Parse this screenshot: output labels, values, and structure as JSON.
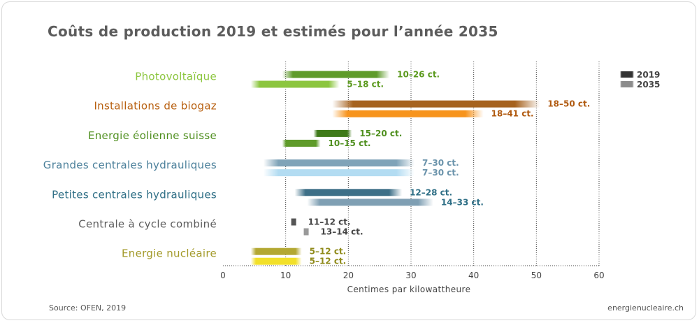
{
  "chart_data": {
    "type": "bar",
    "title": "Coûts de production 2019 et estimés pour l’année 2035",
    "xlabel": "Centimes par kilowattheure",
    "xlim": [
      0,
      60
    ],
    "xticks": [
      0,
      10,
      20,
      30,
      40,
      50,
      60
    ],
    "grid": true,
    "legend_position": "top-right",
    "legend": [
      {
        "name": "2019",
        "color": "#333333"
      },
      {
        "name": "2035",
        "color": "#8c8c8c"
      }
    ],
    "categories": [
      {
        "label": "Photovoltaïque",
        "color": "#8cc63f",
        "ranges": [
          {
            "series": "2019",
            "min": 10,
            "max": 26,
            "label": "10–26 ct.",
            "color": "#5f9b2a",
            "label_color": "#5c9a1f"
          },
          {
            "series": "2035",
            "min": 5,
            "max": 18,
            "label": "5–18 ct.",
            "color": "#8cc63f",
            "label_color": "#5c9a1f"
          }
        ]
      },
      {
        "label": "Installations de biogaz",
        "color": "#b86010",
        "ranges": [
          {
            "series": "2019",
            "min": 18,
            "max": 50,
            "label": "18–50 ct.",
            "color": "#a6621e",
            "label_color": "#b05a10"
          },
          {
            "series": "2035",
            "min": 18,
            "max": 41,
            "label": "18–41 ct.",
            "color": "#f7941d",
            "label_color": "#b05a10"
          }
        ]
      },
      {
        "label": "Energie éolienne suisse",
        "color": "#4f8f1f",
        "ranges": [
          {
            "series": "2019",
            "min": 15,
            "max": 20,
            "label": "15–20 ct.",
            "color": "#3f7a1a",
            "label_color": "#4f8f1f"
          },
          {
            "series": "2035",
            "min": 10,
            "max": 15,
            "label": "10–15 ct.",
            "color": "#5f9b2a",
            "label_color": "#4f8f1f"
          }
        ]
      },
      {
        "label": "Grandes centrales hydrauliques",
        "color": "#4a7f9a",
        "ranges": [
          {
            "series": "2019",
            "min": 7,
            "max": 30,
            "label": "7–30 ct.",
            "color": "#7fa3b8",
            "label_color": "#6a93ab"
          },
          {
            "series": "2035",
            "min": 7,
            "max": 30,
            "label": "7–30 ct.",
            "color": "#b3dcf2",
            "label_color": "#6a93ab"
          }
        ]
      },
      {
        "label": "Petites centrales hydrauliques",
        "color": "#2f6f86",
        "ranges": [
          {
            "series": "2019",
            "min": 12,
            "max": 28,
            "label": "12–28 ct.",
            "color": "#3d6f87",
            "label_color": "#2f6f86"
          },
          {
            "series": "2035",
            "min": 14,
            "max": 33,
            "label": "14–33 ct.",
            "color": "#7f9fb3",
            "label_color": "#2f6f86"
          }
        ]
      },
      {
        "label": "Centrale à cycle combiné",
        "color": "#5c5c5c",
        "ranges": [
          {
            "series": "2019",
            "min": 11,
            "max": 12,
            "label": "11–12 ct.",
            "color": "#555555",
            "label_color": "#444444"
          },
          {
            "series": "2035",
            "min": 13,
            "max": 14,
            "label": "13–14 ct.",
            "color": "#999999",
            "label_color": "#444444"
          }
        ]
      },
      {
        "label": "Energie nucléaire",
        "color": "#a39a2a",
        "ranges": [
          {
            "series": "2019",
            "min": 5,
            "max": 12,
            "label": "5–12 ct.",
            "color": "#b3a832",
            "label_color": "#8f8a1a"
          },
          {
            "series": "2035",
            "min": 5,
            "max": 12,
            "label": "5–12 ct.",
            "color": "#f2e02a",
            "label_color": "#8f8a1a"
          }
        ]
      }
    ]
  },
  "footer": {
    "source": "Source: OFEN, 2019",
    "site": "energienucleaire.ch"
  }
}
